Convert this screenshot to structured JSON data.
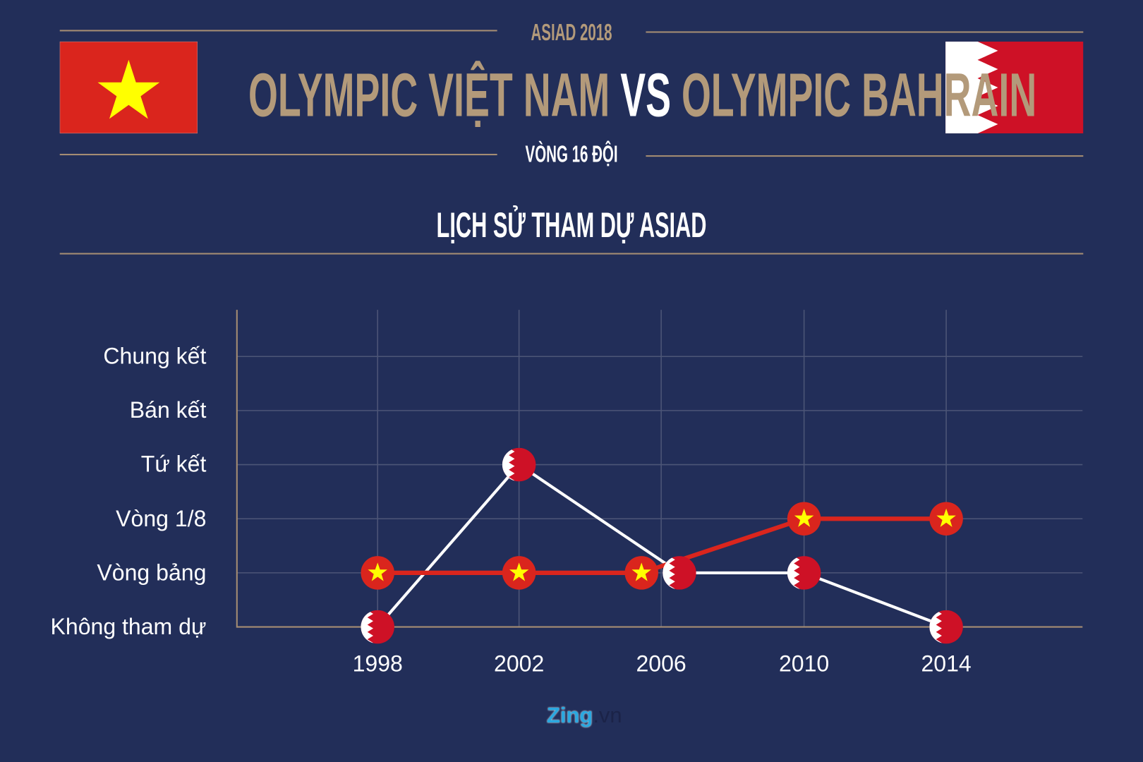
{
  "header": {
    "event": "ASIAD 2018",
    "team_a": "OLYMPIC VIỆT NAM",
    "vs": "VS",
    "team_b": "OLYMPIC BAHRAIN",
    "round": "VÒNG 16 ĐỘI",
    "section_title": "LỊCH SỬ THAM DỰ ASIAD"
  },
  "colors": {
    "background": "#222e59",
    "gold": "#b39a7a",
    "vietnam": "#da251d",
    "star": "#ffff00",
    "bahrain": "#ce1126",
    "bahrain_line": "#ffffff"
  },
  "chart_data": {
    "type": "line",
    "title": "LỊCH SỬ THAM DỰ ASIAD",
    "categories": [
      "1998",
      "2002",
      "2006",
      "2010",
      "2014"
    ],
    "y_levels": [
      "Không tham dự",
      "Vòng bảng",
      "Vòng 1/8",
      "Tứ kết",
      "Bán kết",
      "Chung kết"
    ],
    "grid": true,
    "series": [
      {
        "team": "vietnam",
        "marker": "vietnam-flag",
        "values": [
          "Vòng bảng",
          "Vòng bảng",
          "Vòng bảng",
          "Vòng 1/8",
          "Vòng 1/8"
        ]
      },
      {
        "team": "bahrain",
        "marker": "bahrain-flag",
        "values": [
          "Không tham dự",
          "Tứ kết",
          "Vòng bảng",
          "Vòng bảng",
          "Không tham dự"
        ]
      }
    ]
  },
  "footer": {
    "logo": "Zing",
    "logo_suffix": ".vn"
  }
}
